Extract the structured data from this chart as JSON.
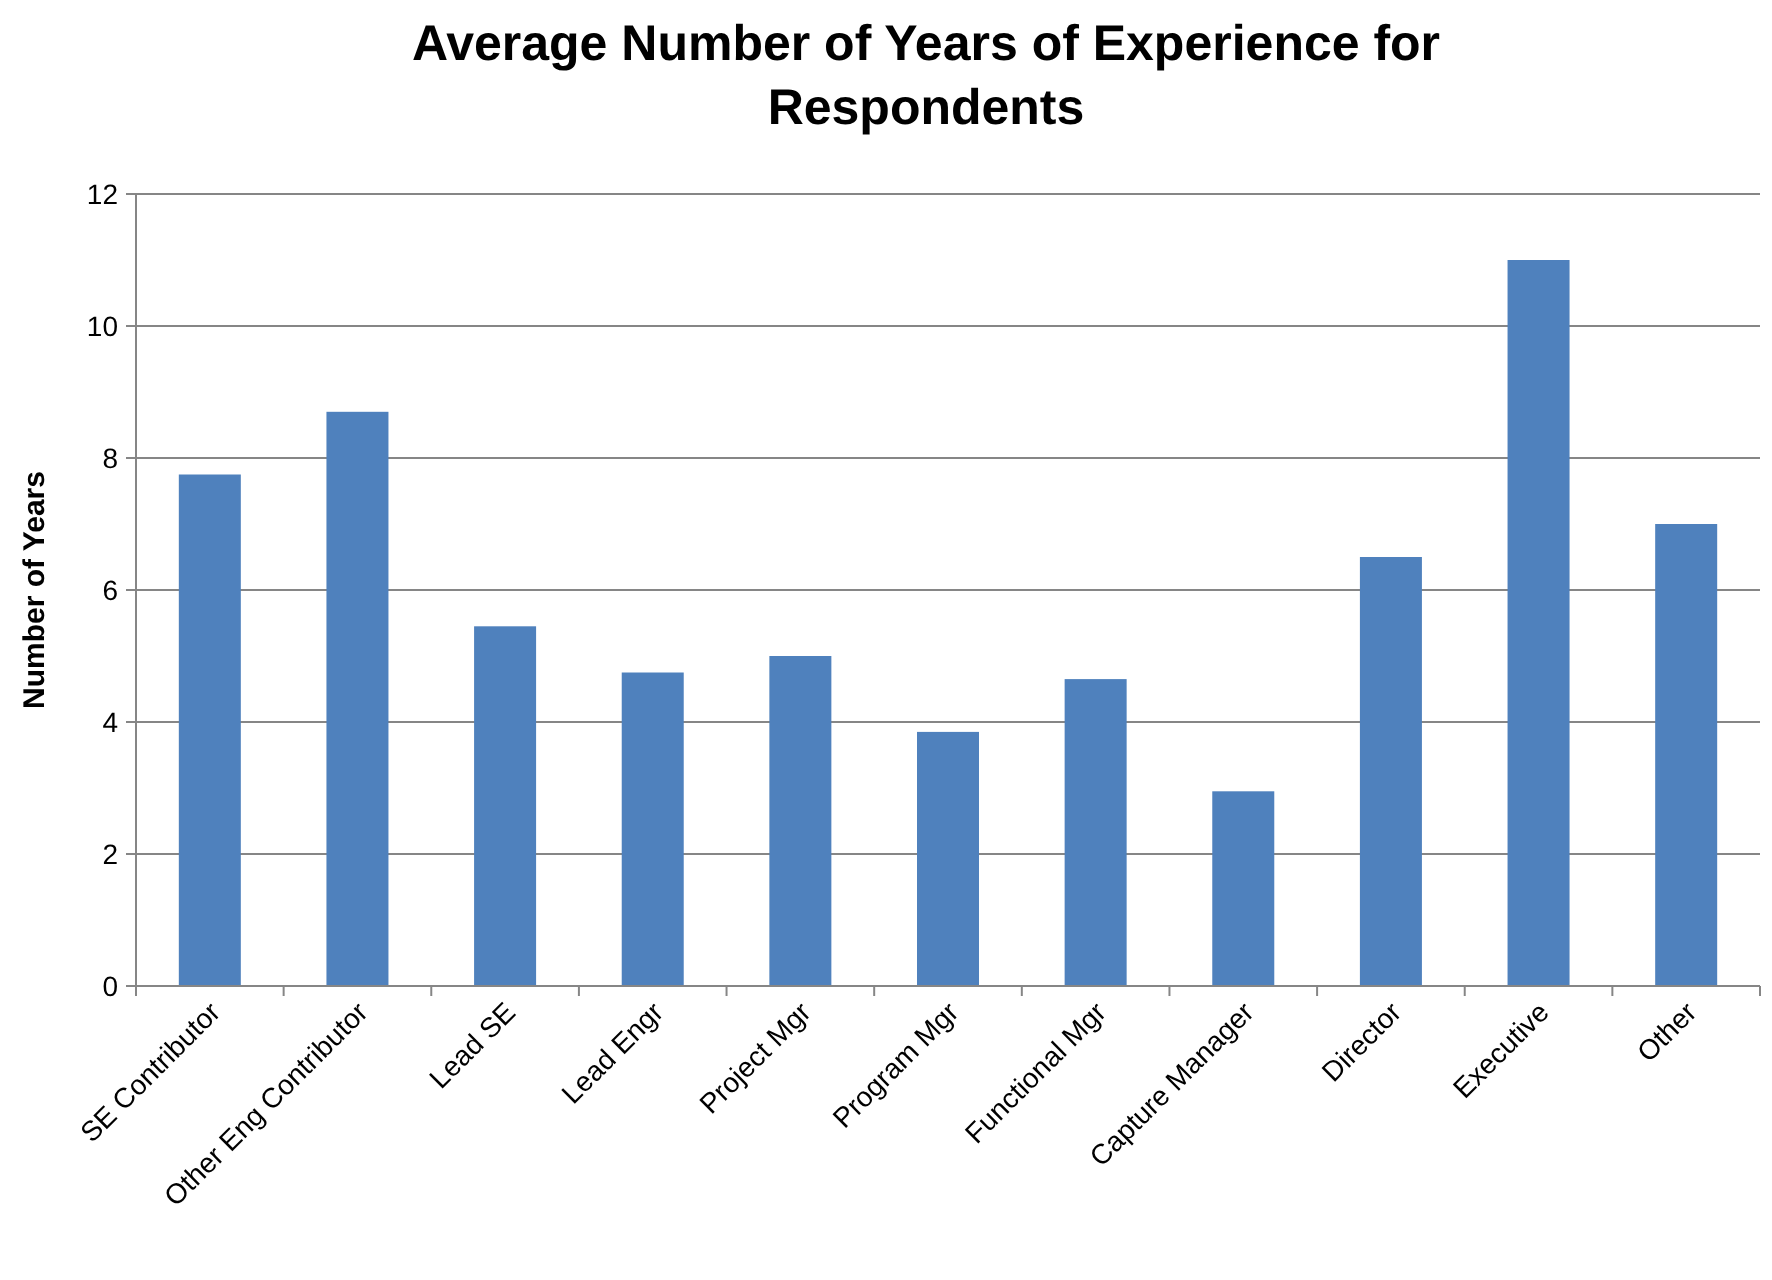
{
  "chart_data": {
    "type": "bar",
    "title": "Average Number of Years of Experience for Respondents",
    "ylabel": "Number of Years",
    "categories": [
      "SE Contributor",
      "Other Eng Contributor",
      "Lead SE",
      "Lead Engr",
      "Project Mgr",
      "Program Mgr",
      "Functional Mgr",
      "Capture Manager",
      "Director",
      "Executive",
      "Other"
    ],
    "values": [
      7.75,
      8.7,
      5.45,
      4.75,
      5.0,
      3.85,
      4.65,
      2.95,
      6.5,
      11.0,
      7.0
    ],
    "color": "#4f81bd",
    "ylim": [
      0,
      12
    ],
    "yticks": [
      0,
      2,
      4,
      6,
      8,
      10,
      12
    ],
    "grid": "y"
  }
}
